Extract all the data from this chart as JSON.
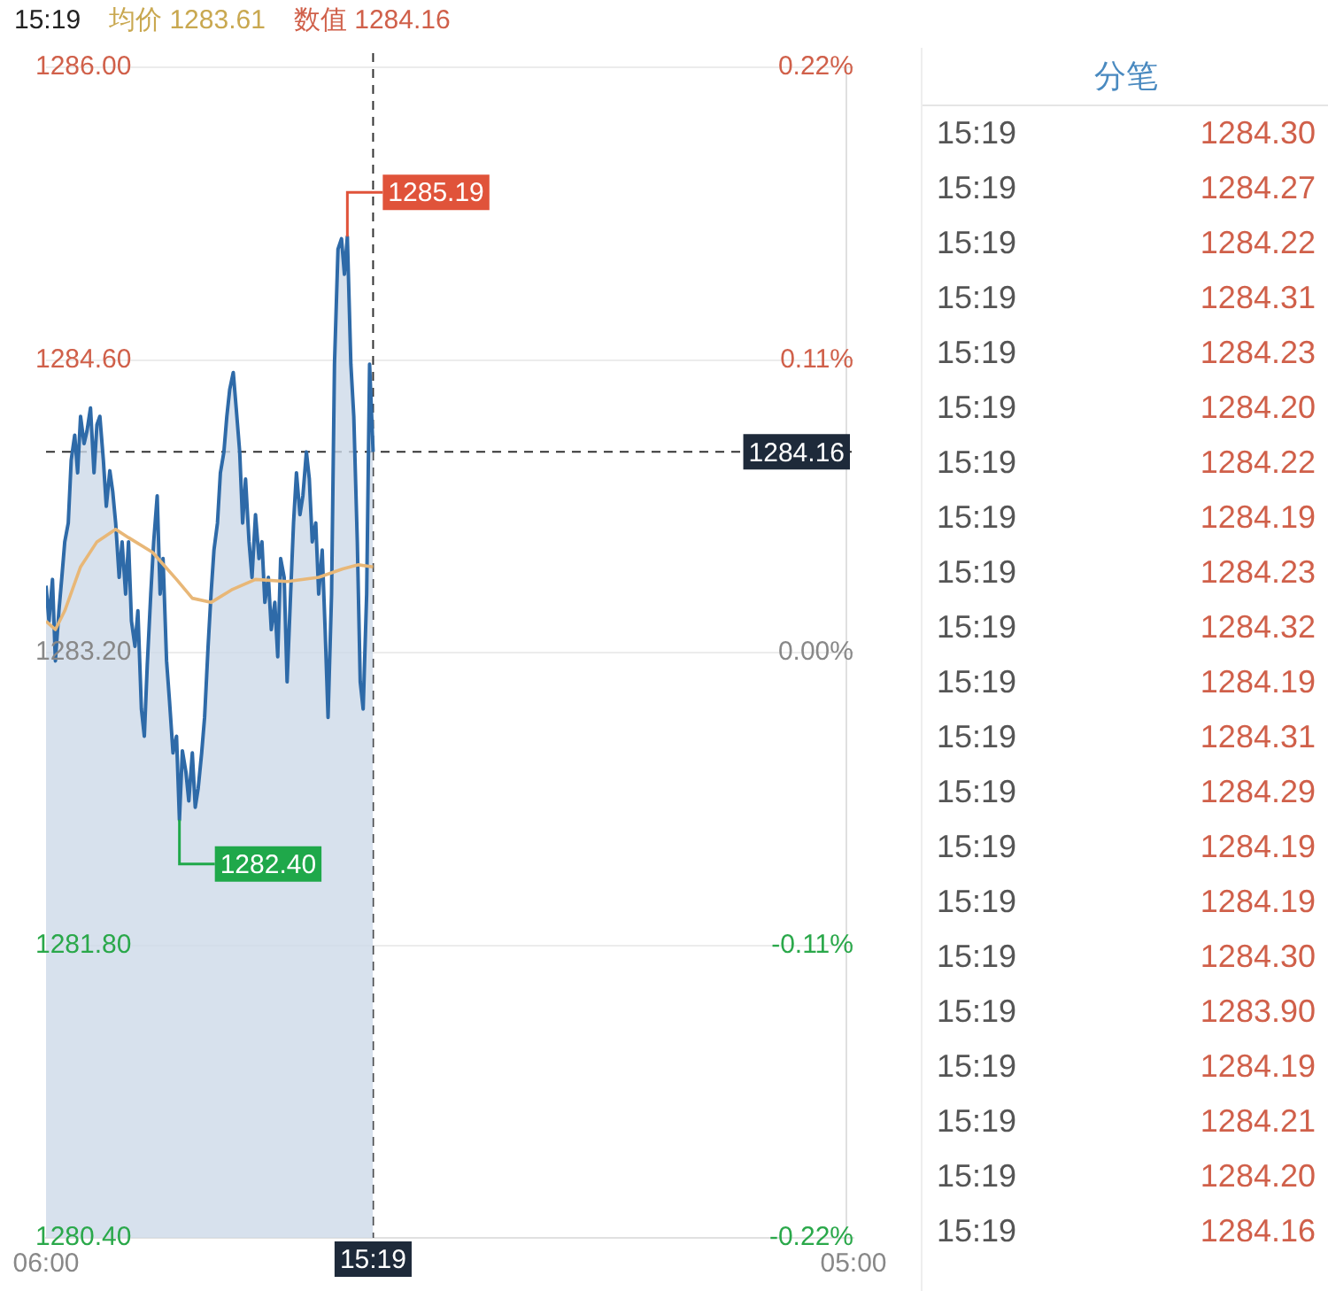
{
  "chart_data": {
    "type": "area",
    "annotations": [
      "15:19",
      "均价 1283.61",
      "数值 1284.16",
      "分笔",
      "15:19",
      "1284.30",
      "15:19",
      "1284.27",
      "15:19",
      "1284.22",
      "15:19",
      "1284.31",
      "15:19",
      "1284.23",
      "15:19",
      "1284.20",
      "15:19",
      "1284.22",
      "15:19",
      "1284.19",
      "15:19",
      "1284.23",
      "15:19",
      "1284.32",
      "15:19",
      "1284.19",
      "15:19",
      "1284.31",
      "15:19",
      "1284.29",
      "15:19",
      "1284.19",
      "15:19",
      "1284.19",
      "15:19",
      "1284.30",
      "15:19",
      "1283.90",
      "15:19",
      "1284.19",
      "15:19",
      "1284.21",
      "15:19",
      "1284.20",
      "15:19",
      "1284.16",
      {
        "text": "1285.19",
        "x": "--01-01T14:35",
        "y": 1285.19
      },
      {
        "text": "1282.40",
        "x": "--01-01T09:48",
        "y": 1282.4
      }
    ],
    "series": [
      {
        "color": "#2e6aa8",
        "x": [
          "--01-01T06:00",
          "--01-01T06:05",
          "--01-01T06:11",
          "--01-01T06:16",
          "--01-01T06:22",
          "--01-01T06:27",
          "--01-01T06:32",
          "--01-01T06:38",
          "--01-01T06:43",
          "--01-01T06:49",
          "--01-01T06:54",
          "--01-01T06:59",
          "--01-01T07:05",
          "--01-01T07:10",
          "--01-01T07:16",
          "--01-01T07:22",
          "--01-01T07:27",
          "--01-01T07:32",
          "--01-01T07:38",
          "--01-01T07:43",
          "--01-01T07:49",
          "--01-01T07:54",
          "--01-01T07:59",
          "--01-01T08:05",
          "--01-01T08:10",
          "--01-01T08:16",
          "--01-01T08:21",
          "--01-01T08:26",
          "--01-01T08:32",
          "--01-01T08:37",
          "--01-01T08:43",
          "--01-01T08:48",
          "--01-01T08:53",
          "--01-01T08:59",
          "--01-01T09:04",
          "--01-01T09:10",
          "--01-01T09:15",
          "--01-01T09:20",
          "--01-01T09:26",
          "--01-01T09:31",
          "--01-01T09:37",
          "--01-01T09:43",
          "--01-01T09:48",
          "--01-01T09:53",
          "--01-01T09:59",
          "--01-01T10:04",
          "--01-01T10:10",
          "--01-01T10:15",
          "--01-01T10:20",
          "--01-01T10:26",
          "--01-01T10:31",
          "--01-01T10:37",
          "--01-01T10:42",
          "--01-01T10:47",
          "--01-01T10:53",
          "--01-01T10:58",
          "--01-01T11:04",
          "--01-01T11:09",
          "--01-01T11:14",
          "--01-01T11:20",
          "--01-01T11:25",
          "--01-01T11:31",
          "--01-01T11:36",
          "--01-01T11:41",
          "--01-01T11:47",
          "--01-01T11:52",
          "--01-01T11:58",
          "--01-01T12:04",
          "--01-01T12:09",
          "--01-01T12:14",
          "--01-01T12:20",
          "--01-01T12:25",
          "--01-01T12:31",
          "--01-01T12:36",
          "--01-01T12:41",
          "--01-01T12:47",
          "--01-01T12:52",
          "--01-01T12:58",
          "--01-01T13:03",
          "--01-01T13:08",
          "--01-01T13:14",
          "--01-01T13:19",
          "--01-01T13:25",
          "--01-01T13:30",
          "--01-01T13:35",
          "--01-01T13:41",
          "--01-01T13:46",
          "--01-01T13:52",
          "--01-01T13:57",
          "--01-01T14:02",
          "--01-01T14:08",
          "--01-01T14:13",
          "--01-01T14:19",
          "--01-01T14:25",
          "--01-01T14:30",
          "--01-01T14:35",
          "--01-01T14:41",
          "--01-01T14:46",
          "--01-01T14:52",
          "--01-01T14:57",
          "--01-01T15:02",
          "--01-01T15:08",
          "--01-01T15:13",
          "--01-01T15:19"
        ],
        "values": [
          1283.52,
          1283.35,
          1283.55,
          1283.16,
          1283.4,
          1283.56,
          1283.73,
          1283.82,
          1284.12,
          1284.24,
          1284.06,
          1284.33,
          1284.2,
          1284.26,
          1284.37,
          1284.06,
          1284.29,
          1284.33,
          1284.12,
          1283.9,
          1284.07,
          1283.97,
          1283.82,
          1283.56,
          1283.73,
          1283.48,
          1283.73,
          1283.35,
          1283.23,
          1283.4,
          1282.93,
          1282.8,
          1283.14,
          1283.48,
          1283.73,
          1283.95,
          1283.48,
          1283.65,
          1283.16,
          1282.97,
          1282.72,
          1282.8,
          1282.4,
          1282.73,
          1282.63,
          1282.49,
          1282.72,
          1282.46,
          1282.55,
          1282.72,
          1282.89,
          1283.23,
          1283.48,
          1283.69,
          1283.82,
          1284.06,
          1284.16,
          1284.33,
          1284.46,
          1284.54,
          1284.37,
          1284.16,
          1283.82,
          1284.03,
          1283.73,
          1283.56,
          1283.86,
          1283.65,
          1283.73,
          1283.44,
          1283.56,
          1283.31,
          1283.44,
          1283.18,
          1283.65,
          1283.56,
          1283.06,
          1283.48,
          1283.82,
          1284.06,
          1283.86,
          1283.95,
          1284.16,
          1284.03,
          1283.73,
          1283.82,
          1283.48,
          1283.69,
          1283.31,
          1282.89,
          1283.48,
          1284.58,
          1285.13,
          1285.18,
          1285.01,
          1285.19,
          1284.58,
          1284.33,
          1283.73,
          1283.06,
          1282.93,
          1283.48,
          1284.58,
          1284.16
        ]
      },
      {
        "type": "line",
        "color": "#e8b777",
        "x": [
          "--01-01T06:00",
          "--01-01T06:16",
          "--01-01T06:32",
          "--01-01T06:59",
          "--01-01T07:27",
          "--01-01T07:59",
          "--01-01T08:21",
          "--01-01T09:02",
          "--01-01T09:43",
          "--01-01T10:10",
          "--01-01T10:42",
          "--01-01T11:17",
          "--01-01T11:58",
          "--01-01T12:52",
          "--01-01T13:46",
          "--01-01T14:27",
          "--01-01T14:54",
          "--01-01T15:19"
        ],
        "values": [
          1283.35,
          1283.31,
          1283.4,
          1283.61,
          1283.73,
          1283.79,
          1283.75,
          1283.68,
          1283.55,
          1283.46,
          1283.44,
          1283.5,
          1283.55,
          1283.54,
          1283.56,
          1283.6,
          1283.62,
          1283.61
        ]
      }
    ],
    "xlim": [
      "--01-01T06:00",
      "--01-02T05:00"
    ],
    "xticks": [
      {
        "value": "--01-01T06:00",
        "label": "06:00"
      },
      {
        "value": "--01-02T05:00",
        "label": "05:00"
      }
    ],
    "ylim": [
      1280.4,
      1286.0
    ],
    "yticks": [
      {
        "value": 1280.4,
        "label": "1280.40"
      },
      {
        "value": 1281.8,
        "label": "1281.80"
      },
      {
        "value": 1283.2,
        "label": "1283.20"
      },
      {
        "value": 1284.6,
        "label": "1284.60"
      },
      {
        "value": 1286.0,
        "label": "1286.00"
      }
    ],
    "y2lim": [
      -0.22,
      0.22
    ],
    "y2ticks": [
      {
        "value": -0.22,
        "label": "-0.22%"
      },
      {
        "value": -0.11,
        "label": "-0.11%"
      },
      {
        "value": 0,
        "label": "0.00%"
      },
      {
        "value": 0.11,
        "label": "0.11%"
      },
      {
        "value": 0.22,
        "label": "0.22%"
      }
    ],
    "ref_lines": [
      {
        "axis": "y",
        "value": 1284.16,
        "label": "1284.16",
        "line_style": "dashed"
      },
      {
        "axis": "x",
        "value": "--01-01T15:19",
        "label": "15:19",
        "line_style": "dashed"
      }
    ],
    "grid": "y",
    "legend": false,
    "marker": "none"
  }
}
